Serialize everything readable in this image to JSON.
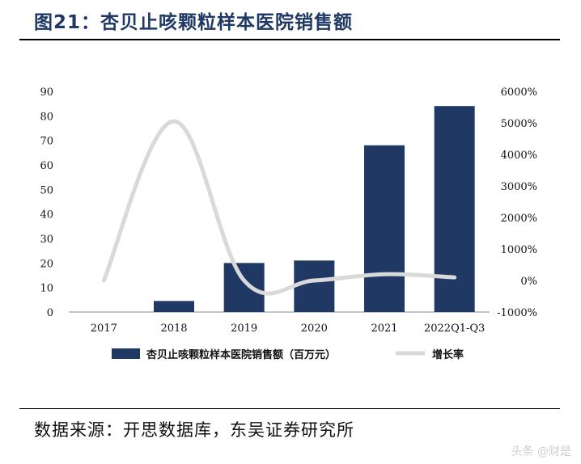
{
  "figure": {
    "title": "图21：杏贝止咳颗粒样本医院销售额",
    "source": "数据来源：开思数据库，东吴证券研究所",
    "watermark": "头条 @财是"
  },
  "colors": {
    "bar": "#1f3864",
    "line": "#d9d9d9",
    "title": "#1f3864"
  },
  "chart_data": {
    "type": "bar",
    "categories": [
      "2017",
      "2018",
      "2019",
      "2020",
      "2021",
      "2022Q1-Q3"
    ],
    "series": [
      {
        "name": "杏贝止咳颗粒样本医院销售额（百万元）",
        "type": "bar",
        "axis": "left",
        "values": [
          0,
          4.5,
          20,
          21,
          68,
          84
        ]
      },
      {
        "name": "增长率",
        "type": "line",
        "axis": "right",
        "values": [
          0,
          5050,
          0,
          0,
          200,
          100
        ]
      }
    ],
    "y_left": {
      "min": 0,
      "max": 90,
      "ticks": [
        "0",
        "10",
        "20",
        "30",
        "40",
        "50",
        "60",
        "70",
        "80",
        "90"
      ]
    },
    "y_right": {
      "min": -1000,
      "max": 6000,
      "ticks": [
        "-1000%",
        "0%",
        "1000%",
        "2000%",
        "3000%",
        "4000%",
        "5000%",
        "6000%"
      ]
    },
    "legend_position": "bottom"
  }
}
